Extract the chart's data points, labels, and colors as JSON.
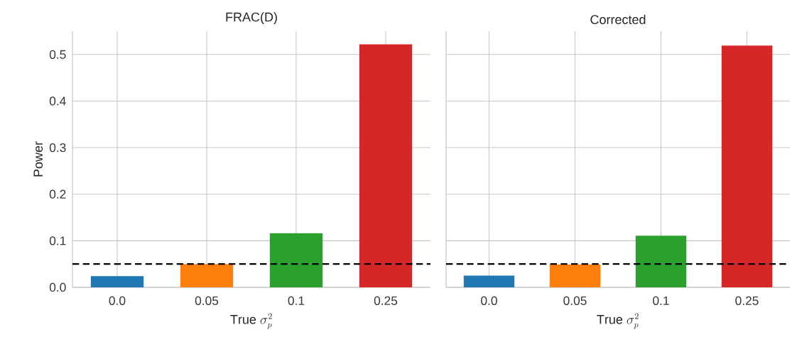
{
  "chart_data": [
    {
      "type": "bar",
      "title": "FRAC(D)",
      "xlabel": "\\mathrm{True}\\ \\sigma_p^2",
      "ylabel": "Power",
      "categories": [
        "0.0",
        "0.05",
        "0.1",
        "0.25"
      ],
      "values": [
        0.024,
        0.05,
        0.116,
        0.522
      ],
      "colors": [
        "#1f77b4",
        "#ff7f0e",
        "#2ca02c",
        "#d62728"
      ],
      "ylim": [
        0,
        0.55
      ],
      "yticks": [
        {
          "value": 0,
          "label": "0.0"
        },
        0.1,
        0.2,
        0.3,
        0.4,
        0.5
      ],
      "grid": true,
      "ref_lines": [
        {
          "axis": "y",
          "value": 0.05,
          "color": "#000000",
          "line_style": "dashed"
        }
      ]
    },
    {
      "type": "bar",
      "title": "Corrected",
      "xlabel": "\\mathrm{True}\\ \\sigma_p^2",
      "categories": [
        "0.0",
        "0.05",
        "0.1",
        "0.25"
      ],
      "values": [
        0.025,
        0.049,
        0.111,
        0.519
      ],
      "colors": [
        "#1f77b4",
        "#ff7f0e",
        "#2ca02c",
        "#d62728"
      ],
      "ylim": [
        0,
        0.55
      ],
      "yticks": [
        0,
        0.1,
        0.2,
        0.3,
        0.4,
        0.5
      ],
      "grid": true,
      "tick_labels": "x",
      "ref_lines": [
        {
          "axis": "y",
          "value": 0.05,
          "color": "#000000",
          "line_style": "dashed"
        }
      ]
    }
  ]
}
